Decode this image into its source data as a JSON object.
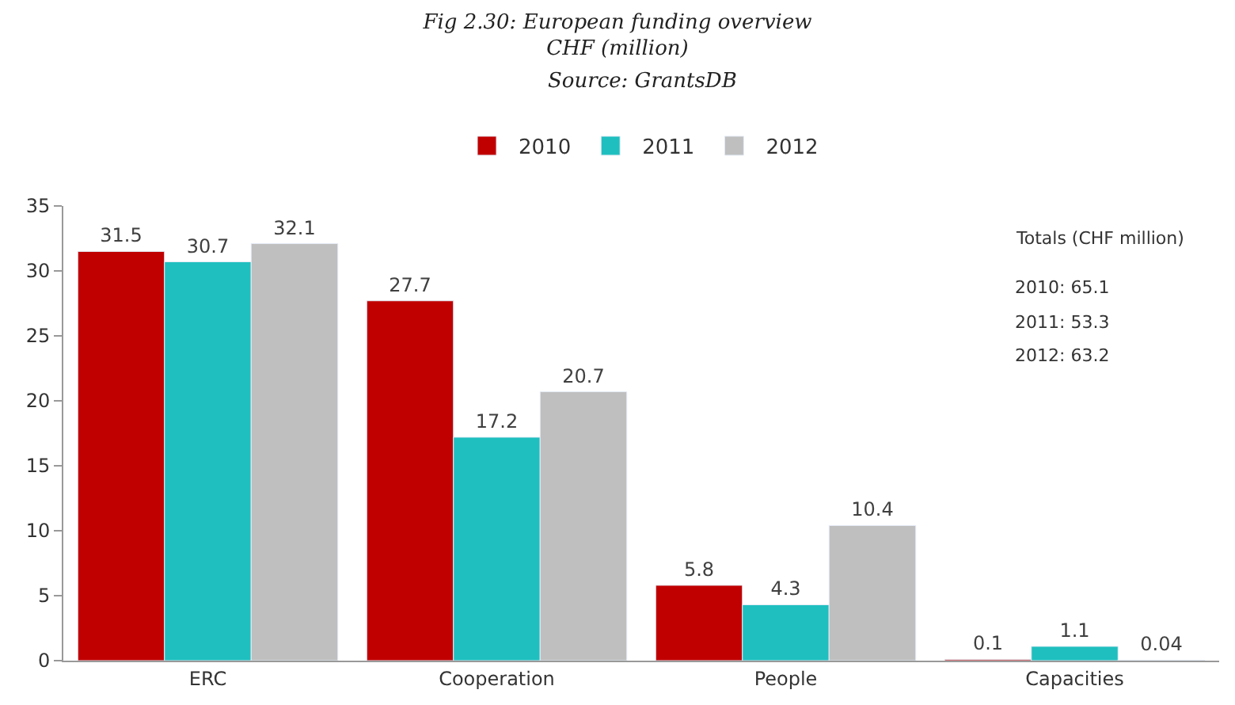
{
  "chart_data": {
    "type": "bar",
    "title": "Fig 2.30: European funding overview",
    "subtitle": "CHF (million)",
    "categories": [
      "ERC",
      "Cooperation",
      "People",
      "Capacities"
    ],
    "series": [
      {
        "name": "2010",
        "color": "#c00000",
        "values": [
          31.5,
          27.7,
          5.8,
          0.1
        ]
      },
      {
        "name": "2011",
        "color": "#1fbfbf",
        "values": [
          30.7,
          17.2,
          4.3,
          1.1
        ]
      },
      {
        "name": "2012",
        "color": "#bfbfbf",
        "values": [
          32.1,
          20.7,
          10.4,
          0.04
        ]
      }
    ],
    "ylim": [
      0,
      35
    ],
    "yticks": [
      0,
      5,
      10,
      15,
      20,
      25,
      30,
      35
    ],
    "legend": "top",
    "data_labels": true,
    "annotations": [
      "Source: GrantsDB",
      "Totals (CHF million)",
      "2010: 65.1",
      "2011: 53.3",
      "2012: 63.2"
    ]
  }
}
